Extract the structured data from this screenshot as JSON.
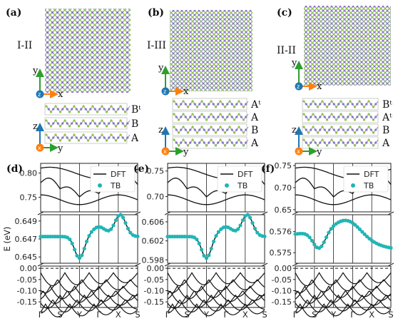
{
  "structure_panels": [
    {
      "label": "(a)",
      "config": "I-II",
      "layers": [
        "Bᵗ",
        "B",
        "A"
      ]
    },
    {
      "label": "(b)",
      "config": "I-III",
      "layers": [
        "Aᵗ",
        "A",
        "B",
        "A"
      ]
    },
    {
      "label": "(c)",
      "config": "II-II",
      "layers": [
        "Bᵗ",
        "Aᵗ",
        "B",
        "A"
      ]
    }
  ],
  "axes_labels": {
    "top_y": "y",
    "top_x": "x",
    "top_z": "z",
    "side_z": "z",
    "side_x": "x",
    "side_y": "y"
  },
  "colors": {
    "atom_green": "#8bc540",
    "atom_purple": "#8a74c4",
    "bond": "#7a7fa6",
    "axis_blue": "#1f77b4",
    "axis_orange": "#ff7f0e",
    "tb_teal": "#21b5b5"
  },
  "band_ylabel": "E (eV)",
  "legend": {
    "dft": "DFT",
    "tb": "TB"
  },
  "chart_data": [
    {
      "type": "line",
      "label": "(d)",
      "xlabel_ticks": [
        "Γ",
        "S",
        "Y",
        "Γ",
        "X",
        "S"
      ],
      "upper": {
        "ylim": [
          0.72,
          0.82
        ],
        "yticks": [
          "0.80",
          "0.75"
        ]
      },
      "middle": {
        "ylim": [
          0.6443,
          0.6497
        ],
        "yticks": [
          "0.649",
          "0.647",
          "0.645"
        ]
      },
      "lower": {
        "ylim": [
          -0.175,
          0.01
        ],
        "yticks": [
          "0.00",
          "-0.05",
          "-0.10",
          "-0.15"
        ]
      }
    },
    {
      "type": "line",
      "label": "(e)",
      "xlabel_ticks": [
        "Γ",
        "S",
        "Y",
        "Γ",
        "X",
        "S"
      ],
      "upper": {
        "ylim": [
          0.67,
          0.765
        ],
        "yticks": [
          "0.75",
          "0.70"
        ]
      },
      "middle": {
        "ylim": [
          0.5973,
          0.6075
        ],
        "yticks": [
          "0.606",
          "0.602",
          "0.598"
        ]
      },
      "lower": {
        "ylim": [
          -0.175,
          0.01
        ],
        "yticks": [
          "0.00",
          "-0.05",
          "-0.10",
          "-0.15"
        ]
      }
    },
    {
      "type": "line",
      "label": "(f)",
      "xlabel_ticks": [
        "Γ",
        "S",
        "Y",
        "Γ",
        "X",
        "S"
      ],
      "upper": {
        "ylim": [
          0.645,
          0.755
        ],
        "yticks": [
          "0.75",
          "0.70",
          "0.65"
        ]
      },
      "middle": {
        "ylim": [
          0.5745,
          0.5768
        ],
        "yticks": [
          "0.576",
          "0.575"
        ]
      },
      "lower": {
        "ylim": [
          -0.175,
          0.01
        ],
        "yticks": [
          "0.00",
          "-0.05",
          "-0.10",
          "-0.15"
        ]
      }
    }
  ]
}
